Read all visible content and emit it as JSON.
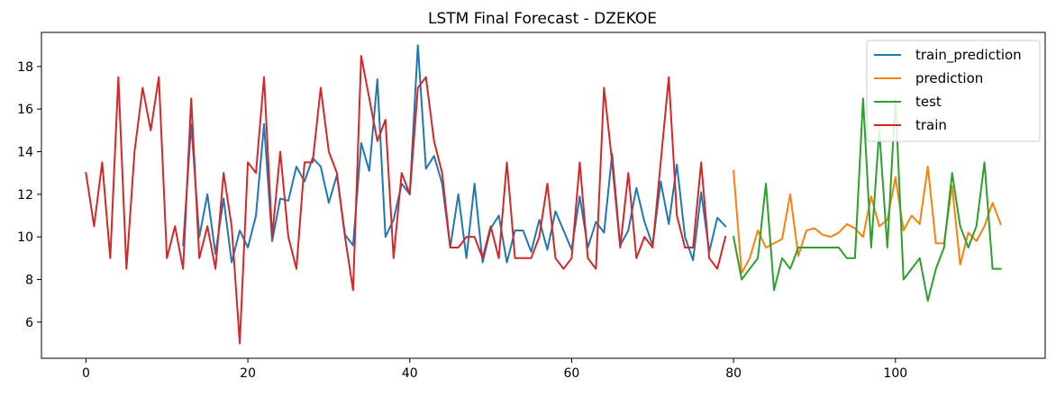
{
  "chart_data": {
    "type": "line",
    "title": "LSTM Final Forecast - DZEKOE",
    "xlabel": "",
    "ylabel": "",
    "xlim": [
      -5.5,
      118.5
    ],
    "ylim": [
      4.3,
      19.6
    ],
    "xticks": [
      0,
      20,
      40,
      60,
      80,
      100
    ],
    "yticks": [
      6,
      8,
      10,
      12,
      14,
      16,
      18
    ],
    "grid": false,
    "legend_position": "top-right",
    "series": [
      {
        "name": "train_prediction",
        "color": "#1f77b4",
        "x": [
          12,
          13,
          14,
          15,
          16,
          17,
          18,
          19,
          20,
          21,
          22,
          23,
          24,
          25,
          26,
          27,
          28,
          29,
          30,
          31,
          32,
          33,
          34,
          35,
          36,
          37,
          38,
          39,
          40,
          41,
          42,
          43,
          44,
          45,
          46,
          47,
          48,
          49,
          50,
          51,
          52,
          53,
          54,
          55,
          56,
          57,
          58,
          59,
          60,
          61,
          62,
          63,
          64,
          65,
          66,
          67,
          68,
          69,
          70,
          71,
          72,
          73,
          74,
          75,
          76,
          77,
          78,
          79
        ],
        "y": [
          9.6,
          15.3,
          10.0,
          12.0,
          9.2,
          11.8,
          8.8,
          10.3,
          9.5,
          11.0,
          15.3,
          9.8,
          11.8,
          11.7,
          13.3,
          12.6,
          13.7,
          13.3,
          11.6,
          12.9,
          10.1,
          9.6,
          14.4,
          13.1,
          17.4,
          10.0,
          10.8,
          12.5,
          12.0,
          19.0,
          13.2,
          13.8,
          12.5,
          9.5,
          12.0,
          9.0,
          12.5,
          8.8,
          10.4,
          11.0,
          8.8,
          10.3,
          10.3,
          9.3,
          10.8,
          9.4,
          11.2,
          10.3,
          9.4,
          11.9,
          9.5,
          10.7,
          10.2,
          13.9,
          9.6,
          10.3,
          12.3,
          10.7,
          9.6,
          12.6,
          10.6,
          13.4,
          10.0,
          8.9,
          12.1,
          9.3,
          10.9,
          10.5
        ]
      },
      {
        "name": "prediction",
        "color": "#ff7f0e",
        "x": [
          80,
          81,
          82,
          83,
          84,
          85,
          86,
          87,
          88,
          89,
          90,
          91,
          92,
          93,
          94,
          95,
          96,
          97,
          98,
          99,
          100,
          101,
          102,
          103,
          104,
          105,
          106,
          107,
          108,
          109,
          110,
          111,
          112,
          113
        ],
        "y": [
          13.1,
          8.3,
          9.0,
          10.3,
          9.5,
          9.7,
          9.9,
          12.0,
          9.1,
          10.3,
          10.4,
          10.1,
          10.0,
          10.2,
          10.6,
          10.4,
          10.0,
          11.9,
          10.5,
          10.8,
          12.8,
          10.3,
          11.0,
          10.6,
          13.3,
          9.7,
          9.7,
          12.4,
          8.7,
          10.2,
          9.8,
          10.5,
          11.6,
          10.6
        ]
      },
      {
        "name": "test",
        "color": "#2ca02c",
        "x": [
          80,
          81,
          82,
          83,
          84,
          85,
          86,
          87,
          88,
          93,
          94,
          95,
          96,
          97,
          98,
          99,
          100,
          101,
          102,
          103,
          104,
          105,
          106,
          107,
          108,
          109,
          110,
          111,
          112,
          113
        ],
        "y": [
          10.0,
          8.0,
          8.5,
          9.0,
          12.5,
          7.5,
          9.0,
          8.5,
          9.5,
          9.5,
          9.0,
          9.0,
          16.5,
          9.5,
          15.0,
          9.5,
          16.5,
          8.0,
          8.5,
          9.0,
          7.0,
          8.5,
          9.5,
          13.0,
          10.5,
          9.5,
          10.5,
          13.5,
          8.5,
          8.5
        ]
      },
      {
        "name": "train",
        "color": "#d62728",
        "x": [
          0,
          1,
          2,
          3,
          4,
          5,
          6,
          7,
          8,
          9,
          10,
          11,
          12,
          13,
          14,
          15,
          16,
          17,
          18,
          19,
          20,
          21,
          22,
          23,
          24,
          25,
          26,
          27,
          28,
          29,
          30,
          31,
          32,
          33,
          34,
          35,
          36,
          37,
          38,
          39,
          40,
          41,
          42,
          43,
          44,
          45,
          46,
          47,
          48,
          49,
          50,
          51,
          52,
          53,
          54,
          55,
          56,
          57,
          58,
          59,
          60,
          61,
          62,
          63,
          64,
          65,
          66,
          67,
          68,
          69,
          70,
          71,
          72,
          73,
          74,
          75,
          76,
          77,
          78,
          79
        ],
        "y": [
          13.0,
          10.5,
          13.5,
          9.0,
          17.5,
          8.5,
          14.0,
          17.0,
          15.0,
          17.5,
          9.0,
          10.5,
          8.5,
          16.5,
          9.0,
          10.5,
          8.5,
          13.0,
          10.5,
          5.0,
          13.5,
          13.0,
          17.5,
          10.0,
          14.0,
          10.0,
          8.5,
          13.5,
          13.5,
          17.0,
          14.0,
          13.0,
          10.0,
          7.5,
          18.5,
          16.5,
          14.5,
          15.5,
          9.0,
          13.0,
          12.0,
          17.0,
          17.5,
          14.5,
          13.0,
          9.5,
          9.5,
          10.0,
          10.0,
          9.0,
          10.5,
          9.0,
          13.5,
          9.0,
          9.0,
          9.0,
          10.0,
          12.5,
          9.0,
          8.5,
          9.0,
          13.5,
          9.0,
          8.5,
          17.0,
          13.5,
          9.5,
          13.0,
          9.0,
          10.0,
          9.5,
          13.5,
          17.5,
          11.0,
          9.5,
          9.5,
          13.5,
          9.0,
          8.5,
          10.0
        ]
      }
    ]
  }
}
